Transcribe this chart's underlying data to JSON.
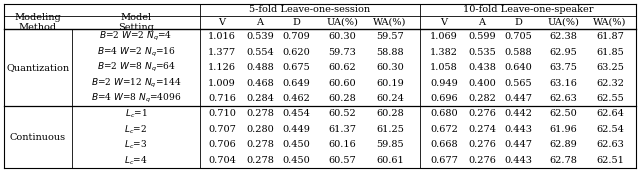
{
  "title_5fold": "5-fold Leave-one-session",
  "title_10fold": "10-fold Leave-one-speaker",
  "col_headers": [
    "V",
    "A",
    "D",
    "UA(%)",
    "WA(%)"
  ],
  "row_groups": [
    {
      "group_label": "Quantization",
      "model_settings_display": [
        "$B$=2 $W$=2 $N_q$=4",
        "$B$=4 $W$=2 $N_q$=16",
        "$B$=2 $W$=8 $N_q$=64",
        "$B$=2 $W$=12 $N_q$=144",
        "$B$=4 $W$=8 $N_q$=4096"
      ],
      "data_5fold": [
        [
          1.016,
          0.539,
          0.709,
          60.3,
          59.57
        ],
        [
          1.377,
          0.554,
          0.62,
          59.73,
          58.88
        ],
        [
          1.126,
          0.488,
          0.675,
          60.62,
          60.3
        ],
        [
          1.009,
          0.468,
          0.649,
          60.6,
          60.19
        ],
        [
          0.716,
          0.284,
          0.462,
          60.28,
          60.24
        ]
      ],
      "data_10fold": [
        [
          1.069,
          0.599,
          0.705,
          62.38,
          61.87
        ],
        [
          1.382,
          0.535,
          0.588,
          62.95,
          61.85
        ],
        [
          1.058,
          0.438,
          0.64,
          63.75,
          63.25
        ],
        [
          0.949,
          0.4,
          0.565,
          63.16,
          62.32
        ],
        [
          0.696,
          0.282,
          0.447,
          62.63,
          62.55
        ]
      ]
    },
    {
      "group_label": "Continuous",
      "model_settings_display": [
        "$L_c$=1",
        "$L_c$=2",
        "$L_c$=3",
        "$L_c$=4"
      ],
      "data_5fold": [
        [
          0.71,
          0.278,
          0.454,
          60.52,
          60.28
        ],
        [
          0.707,
          0.28,
          0.449,
          61.37,
          61.25
        ],
        [
          0.706,
          0.278,
          0.45,
          60.16,
          59.85
        ],
        [
          0.704,
          0.278,
          0.45,
          60.57,
          60.61
        ]
      ],
      "data_10fold": [
        [
          0.68,
          0.276,
          0.442,
          62.5,
          62.64
        ],
        [
          0.672,
          0.274,
          0.443,
          61.96,
          62.54
        ],
        [
          0.668,
          0.276,
          0.447,
          62.89,
          62.63
        ],
        [
          0.677,
          0.276,
          0.443,
          62.78,
          62.51
        ]
      ]
    }
  ],
  "modeling_method_label": "Modeling\nMethod",
  "model_setting_label": "Model\nSetting",
  "bg_color": "#ffffff",
  "font_size": 7.0
}
